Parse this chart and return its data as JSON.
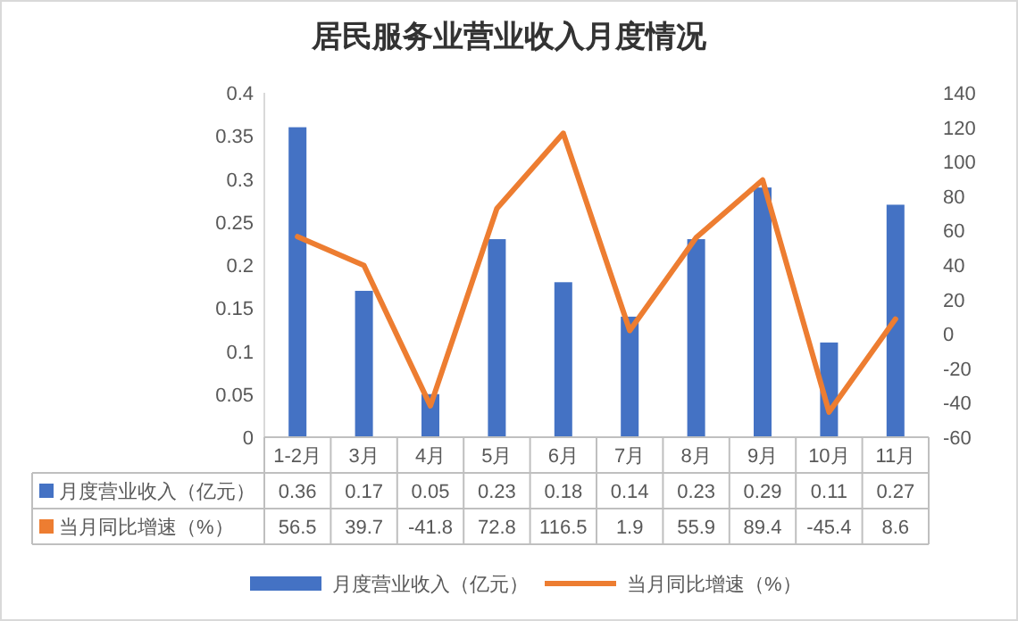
{
  "chart_data": {
    "type": "bar",
    "title": "居民服务业营业收入月度情况",
    "categories": [
      "1-2月",
      "3月",
      "4月",
      "5月",
      "6月",
      "7月",
      "8月",
      "9月",
      "10月",
      "11月"
    ],
    "series": [
      {
        "name": "月度营业收入（亿元）",
        "color": "#4472c4",
        "values": [
          0.36,
          0.17,
          0.05,
          0.23,
          0.18,
          0.14,
          0.23,
          0.29,
          0.11,
          0.27
        ]
      },
      {
        "name": "当月同比增速（%）",
        "type": "line",
        "axis": "y2",
        "color": "#ed7d31",
        "values": [
          56.5,
          39.7,
          -41.8,
          72.8,
          116.5,
          1.9,
          55.9,
          89.4,
          -45.4,
          8.6
        ]
      }
    ],
    "ylim": [
      0,
      0.4
    ],
    "yticks": [
      0,
      0.05,
      0.1,
      0.15,
      0.2,
      0.25,
      0.3,
      0.35,
      0.4
    ],
    "y2lim": [
      -60,
      140
    ],
    "y2ticks": [
      -60,
      -40,
      -20,
      0,
      20,
      40,
      60,
      80,
      100,
      120,
      140
    ],
    "data_labels": true,
    "legend": "bottom",
    "grid": false,
    "marker": "none",
    "line_style": "solid"
  }
}
